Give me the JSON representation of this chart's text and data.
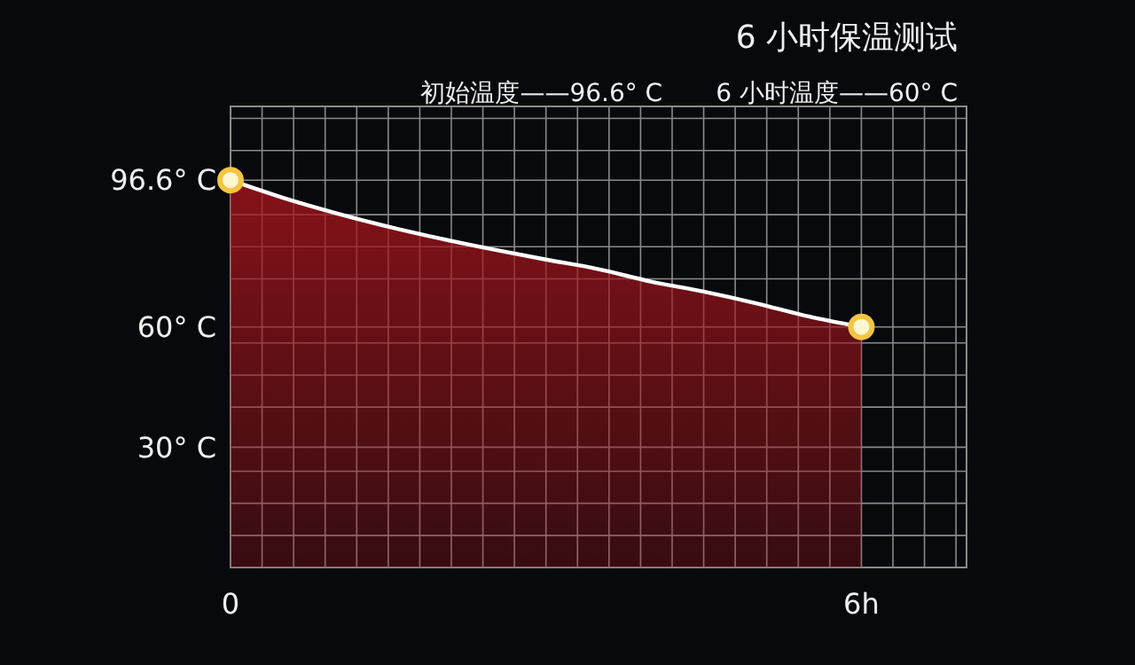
{
  "chart_data": {
    "type": "area",
    "title": "6 小时保温测试",
    "annotations": [
      "初始温度——96.6° C",
      "6 小时温度——60° C"
    ],
    "x": [
      0,
      0.5,
      1,
      1.5,
      2,
      2.5,
      3,
      3.5,
      4,
      4.5,
      5,
      5.5,
      6
    ],
    "series": [
      {
        "color": "#a3141b",
        "marker": "none",
        "values": [
          96.6,
          92.2,
          88.4,
          85,
          82,
          79.3,
          76.8,
          74.4,
          71.3,
          68.8,
          65.9,
          62.6,
          60
        ]
      },
      {
        "type": "scatter",
        "marker": "circle",
        "color": "#f5c542",
        "x": [
          0,
          6
        ],
        "values": [
          96.6,
          60
        ]
      }
    ],
    "xlim": [
      0,
      7
    ],
    "xticks": [
      {
        "value": 0,
        "label": "0"
      },
      {
        "value": 0.3,
        "label": null
      },
      {
        "value": 0.6,
        "label": null
      },
      {
        "value": 0.9,
        "label": null
      },
      {
        "value": 1.2,
        "label": null
      },
      {
        "value": 1.5,
        "label": null
      },
      {
        "value": 1.8,
        "label": null
      },
      {
        "value": 2.1,
        "label": null
      },
      {
        "value": 2.4,
        "label": null
      },
      {
        "value": 2.7,
        "label": null
      },
      {
        "value": 3,
        "label": null
      },
      {
        "value": 3.3,
        "label": null
      },
      {
        "value": 3.6,
        "label": null
      },
      {
        "value": 3.9,
        "label": null
      },
      {
        "value": 4.2,
        "label": null
      },
      {
        "value": 4.5,
        "label": null
      },
      {
        "value": 4.8,
        "label": null
      },
      {
        "value": 5.1,
        "label": null
      },
      {
        "value": 5.4,
        "label": null
      },
      {
        "value": 5.7,
        "label": null
      },
      {
        "value": 6,
        "label": "6h"
      },
      {
        "value": 6.3,
        "label": null
      },
      {
        "value": 6.6,
        "label": null
      },
      {
        "value": 6.9,
        "label": null
      }
    ],
    "ylim": [
      0,
      115
    ],
    "yticks": [
      {
        "value": 8,
        "label": null
      },
      {
        "value": 16,
        "label": null
      },
      {
        "value": 24,
        "label": null
      },
      {
        "value": 30,
        "label": "30° C"
      },
      {
        "value": 40,
        "label": null
      },
      {
        "value": 48,
        "label": null
      },
      {
        "value": 56,
        "label": null
      },
      {
        "value": 60,
        "label": "60° C"
      },
      {
        "value": 72,
        "label": null
      },
      {
        "value": 80,
        "label": null
      },
      {
        "value": 88,
        "label": null
      },
      {
        "value": 96.6,
        "label": "96.6° C"
      },
      {
        "value": 104,
        "label": null
      },
      {
        "value": 112,
        "label": null
      }
    ],
    "grid": true
  }
}
